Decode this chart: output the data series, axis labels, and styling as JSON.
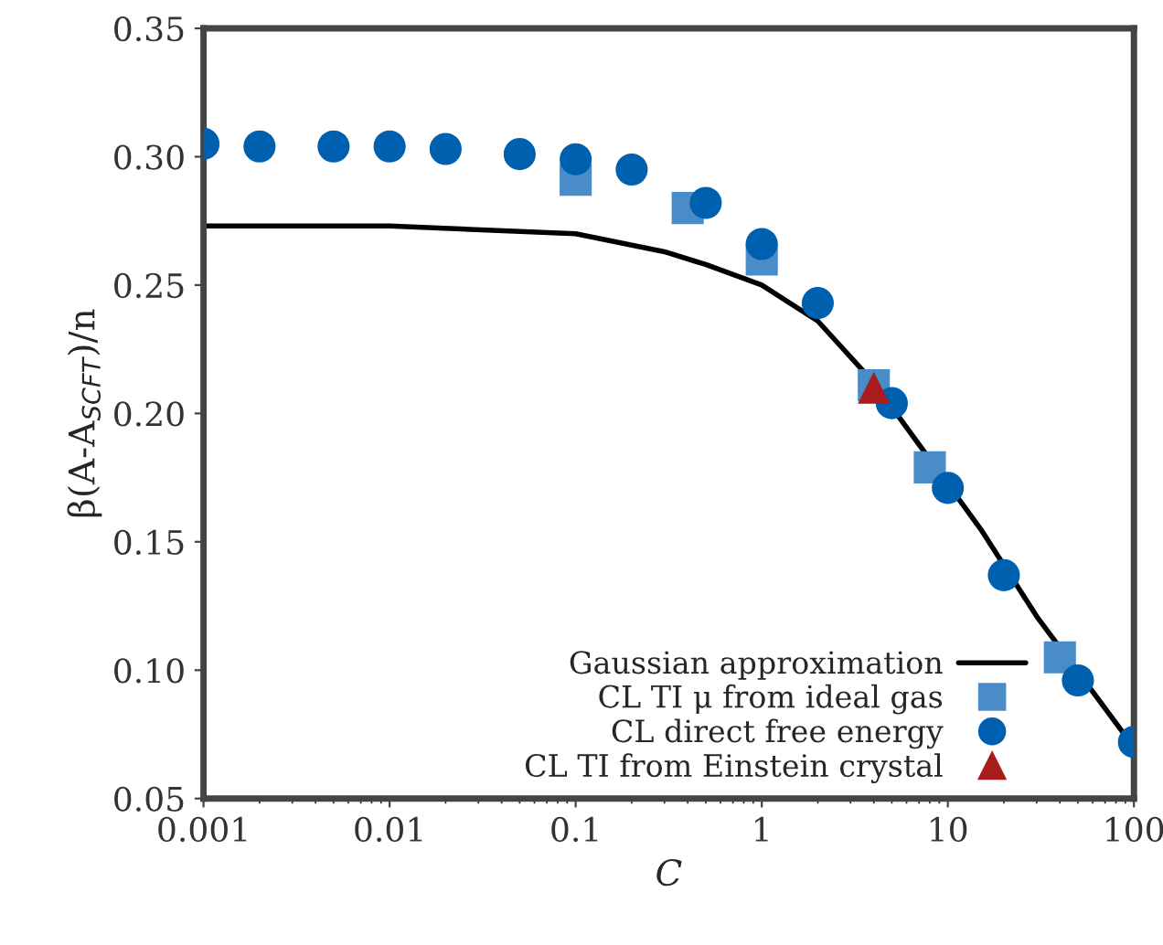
{
  "chart_data": {
    "type": "scatter",
    "xlabel": "C",
    "ylabel": "β(A-A$_{SCFT}$)/n",
    "log": "x",
    "xlim": [
      0.001,
      100
    ],
    "xticks": [
      0.001,
      0.01,
      0.1,
      1,
      10,
      100
    ],
    "ylim": [
      0.05,
      0.35
    ],
    "yticks": [
      {
        "value": 0.05,
        "label": "0.05"
      },
      {
        "value": 0.1,
        "label": "0.10"
      },
      {
        "value": 0.15,
        "label": "0.15"
      },
      {
        "value": 0.2,
        "label": "0.20"
      },
      {
        "value": 0.25,
        "label": "0.25"
      },
      {
        "value": 0.3,
        "label": "0.30"
      },
      {
        "value": 0.35,
        "label": "0.35"
      }
    ],
    "grid": false,
    "legend": "bottom right",
    "series": [
      {
        "name": "Gaussian approximation",
        "type": "line",
        "color": "#000000",
        "marker": "none",
        "x": [
          0.001,
          0.01,
          0.1,
          0.3,
          0.5,
          1,
          2,
          4,
          15,
          30,
          100
        ],
        "values": [
          0.273,
          0.273,
          0.27,
          0.263,
          0.258,
          0.25,
          0.236,
          0.212,
          0.155,
          0.121,
          0.07
        ]
      },
      {
        "name": "CL TI μ from ideal gas",
        "color": "#4a8cc7",
        "marker": "square",
        "x": [
          0.1,
          0.4,
          1,
          4,
          8,
          40
        ],
        "values": [
          0.291,
          0.28,
          0.26,
          0.211,
          0.179,
          0.105
        ]
      },
      {
        "name": "CL direct free energy",
        "color": "#0060b0",
        "marker": "circle",
        "x": [
          0.001,
          0.002,
          0.005,
          0.01,
          0.02,
          0.05,
          0.1,
          0.2,
          0.5,
          1,
          2,
          5,
          10,
          20,
          50,
          100
        ],
        "values": [
          0.305,
          0.304,
          0.304,
          0.304,
          0.303,
          0.301,
          0.299,
          0.295,
          0.282,
          0.266,
          0.243,
          0.204,
          0.171,
          0.137,
          0.096,
          0.072
        ]
      },
      {
        "name": "CL TI from Einstein crystal",
        "color": "#a81c1c",
        "marker": "triangle",
        "x": [
          4
        ],
        "values": [
          0.21
        ]
      }
    ]
  }
}
